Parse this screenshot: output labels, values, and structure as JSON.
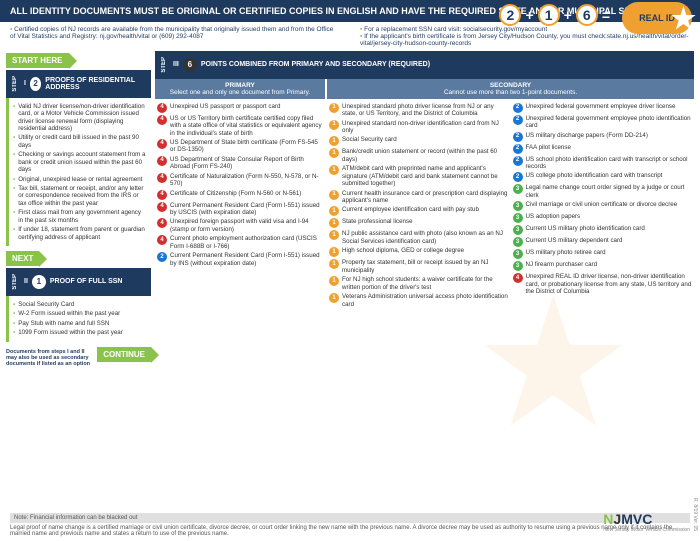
{
  "header": "ALL IDENTITY DOCUMENTS MUST BE ORIGINAL OR CERTIFIED COPIES IN ENGLISH AND HAVE THE REQUIRED STATE AND/OR MUNICIPAL SEALS.",
  "eq": {
    "a": "2",
    "b": "1",
    "c": "6",
    "plus": "+",
    "eq": "=",
    "label": "REAL ID"
  },
  "top": {
    "l1": "Certified copies of NJ records are available from the municipality that originally issued them and from the Office of Vital Statistics and Registry: nj.gov/health/vital or (609) 292-4087",
    "r1": "For a replacement SSN card visit: socialsecurity.gov/myaccount",
    "r2": "If the applicant's birth certificate is from Jersey City/Hudson County, you must check:state.nj.us/health/vital/order-vital/jersey-city-hudson-county-records"
  },
  "arrows": {
    "start": "START HERE",
    "next": "NEXT",
    "cont": "CONTINUE"
  },
  "step1": {
    "label": "STEP",
    "num": "I",
    "circ": "2",
    "title": "PROOFS OF RESIDENTIAL ADDRESS"
  },
  "step2": {
    "label": "STEP",
    "num": "II",
    "circ": "1",
    "title": "PROOF OF FULL SSN"
  },
  "step3": {
    "label": "STEP",
    "num": "III",
    "circ": "6",
    "title": "POINTS COMBINED FROM PRIMARY AND SECONDARY (REQUIRED)"
  },
  "s1items": [
    "Valid NJ driver license/non-driver identification card, or a Motor Vehicle Commission issued driver license renewal form (displaying residential address)",
    "Utility or credit card bill issued in the past 90 days",
    "Checking or savings account statement from a bank or credit union issued within the past 60 days",
    "Original, unexpired lease or rental agreement",
    "Tax bill, statement or receipt, and/or any letter or correspondence received from the IRS or tax office within the past year",
    "First class mail from any government agency in the past six months",
    "If under 18, statement from parent or guardian certifying address of applicant"
  ],
  "s2items": [
    "Social Security Card",
    "W-2 Form issued within the past year",
    "Pay Stub with name and full SSN",
    "1099 Form issued within the past year"
  ],
  "footnote": "Documents from steps I and II may also be used as secondary documents if listed as an option",
  "primary": {
    "hdr": "PRIMARY",
    "sub": "Select one and only one document from Primary.",
    "items": [
      {
        "p": "4",
        "t": "Unexpired US passport or passport card"
      },
      {
        "p": "4",
        "t": "US or US Territory birth certificate certified copy filed with a state office of vital statistics or equivalent agency in the individual's state of birth"
      },
      {
        "p": "4",
        "t": "US Department of State birth certificate (Form FS-545 or DS-1350)"
      },
      {
        "p": "4",
        "t": "US Department of State Consular Report of Birth Abroad (Form FS-240)"
      },
      {
        "p": "4",
        "t": "Certificate of Naturalization (Form N-550, N-578, or N-570)"
      },
      {
        "p": "4",
        "t": "Certificate of Citizenship (Form N-560 or N-561)"
      },
      {
        "p": "4",
        "t": "Current Permanent Resident Card (Form I-551) issued by USCIS (with expiration date)"
      },
      {
        "p": "4",
        "t": "Unexpired foreign passport with valid visa and I-94 (stamp or form version)"
      },
      {
        "p": "4",
        "t": "Current photo employment authorization card (USCIS Form I-688B or I-766)"
      },
      {
        "p": "2",
        "t": "Current Permanent Resident Card (Form I-551) issued by INS (without expiration date)"
      }
    ]
  },
  "secondary": {
    "hdr": "SECONDARY",
    "sub": "Cannot use more than two 1-point documents.",
    "colA": [
      {
        "p": "1",
        "t": "Unexpired standard photo driver license from NJ or any state, or US Territory, and the District of Columbia"
      },
      {
        "p": "1",
        "t": "Unexpired standard non-driver identification card from NJ only"
      },
      {
        "p": "1",
        "t": "Social Security card"
      },
      {
        "p": "1",
        "t": "Bank/credit union statement or record (within the past 60 days)"
      },
      {
        "p": "1",
        "t": "ATM/debit card with preprinted name and applicant's signature (ATM/debit card and bank statement cannot be submitted together)"
      },
      {
        "p": "1",
        "t": "Current health insurance card or prescription card displaying applicant's name"
      },
      {
        "p": "1",
        "t": "Current employee identification card with pay stub"
      },
      {
        "p": "1",
        "t": "State professional license"
      },
      {
        "p": "1",
        "t": "NJ public assistance card with photo (also known as an NJ Social Services identification card)"
      },
      {
        "p": "1",
        "t": "High school diploma, GED or college degree"
      },
      {
        "p": "1",
        "t": "Property tax statement, bill or receipt issued by an NJ municipality"
      },
      {
        "p": "1",
        "t": "For NJ high school students: a waiver certificate for the written portion of the driver's test"
      },
      {
        "p": "1",
        "t": "Veterans Administration universal access photo identification card"
      }
    ],
    "colB": [
      {
        "p": "2",
        "t": "Unexpired federal government employee driver license"
      },
      {
        "p": "2",
        "t": "Unexpired federal government employee photo identification card"
      },
      {
        "p": "2",
        "t": "US military discharge papers (Form DD-214)"
      },
      {
        "p": "2",
        "t": "FAA pilot license"
      },
      {
        "p": "2",
        "t": "US school photo identification card with transcript or school records"
      },
      {
        "p": "2",
        "t": "US college photo identification card with transcript"
      },
      {
        "p": "3",
        "t": "Legal name change court order signed by a judge or court clerk"
      },
      {
        "p": "3",
        "t": "Civil marriage or civil union certificate or divorce decree"
      },
      {
        "p": "3",
        "t": "US adoption papers"
      },
      {
        "p": "3",
        "t": "Current US military photo identification card"
      },
      {
        "p": "3",
        "t": "Current US military dependent card"
      },
      {
        "p": "3",
        "t": "US military photo retiree card"
      },
      {
        "p": "3",
        "t": "NJ firearm purchaser card"
      },
      {
        "p": "4",
        "t": "Unexpired REAL ID driver license, non-driver identification card, or probationary license from any state, US territory and the District of Columbia"
      }
    ]
  },
  "foot": {
    "note": "Note: Financial information can be blacked out",
    "legal": "Legal proof of name change is a certified marriage or civil union certificate, divorce decree, or court order linking the new name with the previous name. A divorce decree may be used as authority to resume using a previous name only if it contains the married name and previous name and states a return to use of the previous name.",
    "logo1": "N",
    "logo2": "J",
    "logo3": "MVC",
    "tagline": "New Jersey Motor Vehicle Commission",
    "ver": "R. 8/19 Ver. 05"
  }
}
